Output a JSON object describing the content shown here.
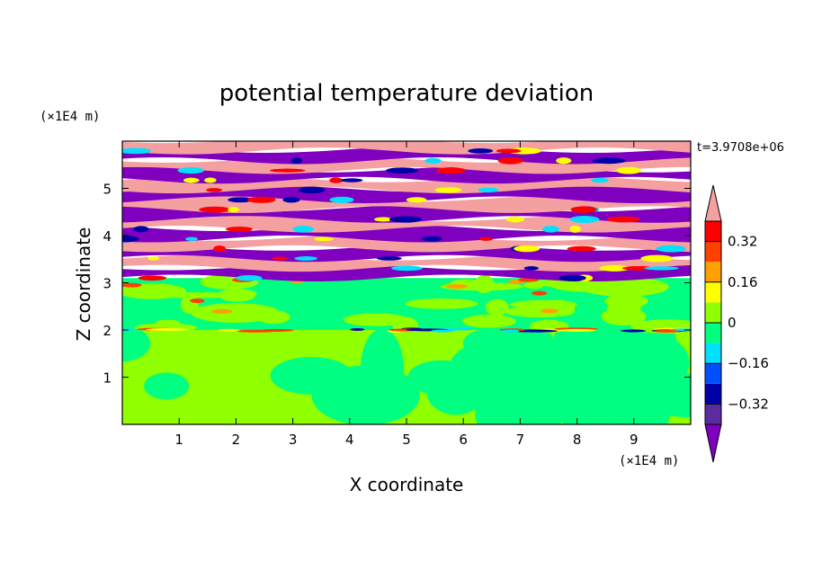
{
  "chart_data": {
    "type": "heatmap",
    "title": "potential temperature deviation",
    "xlabel": "X coordinate",
    "ylabel": "Z coordinate",
    "x_unit": "(×1E4 m)",
    "y_unit": "(×1E4 m)",
    "time_label": "t=3.9708e+06",
    "xlim": [
      0,
      10
    ],
    "ylim": [
      0,
      6
    ],
    "x_ticks": [
      1,
      2,
      3,
      4,
      5,
      6,
      7,
      8,
      9
    ],
    "y_ticks": [
      1,
      2,
      3,
      4,
      5
    ],
    "colorbar": {
      "levels": [
        -0.4,
        -0.32,
        -0.24,
        -0.16,
        -0.08,
        0,
        0.08,
        0.16,
        0.24,
        0.32,
        0.4
      ],
      "colors": [
        "#8000c0",
        "#5a2ca0",
        "#0000a8",
        "#0050ff",
        "#00e0ff",
        "#00ff80",
        "#90ff00",
        "#ffff00",
        "#ffa000",
        "#ff4000",
        "#ff0000",
        "#f5a0a0"
      ],
      "tick_labels": [
        "0.32",
        "0.16",
        "0",
        "−0.16",
        "−0.32"
      ],
      "tick_values": [
        0.32,
        0.16,
        0,
        -0.16,
        -0.32
      ],
      "extend": "both"
    },
    "bands": [
      {
        "z_min": 0,
        "z_max": 2.0,
        "pattern": "turbulent mix",
        "colors": [
          "#90ff00",
          "#00ff80"
        ]
      },
      {
        "z_min": 2.0,
        "z_max": 3.1,
        "pattern": "mostly uniform",
        "colors": [
          "#00ff80",
          "#90ff00"
        ]
      },
      {
        "z_min": 3.1,
        "z_max": 6.0,
        "pattern": "alternating layers",
        "colors": [
          "#8000c0",
          "#f5a0a0"
        ]
      }
    ]
  }
}
